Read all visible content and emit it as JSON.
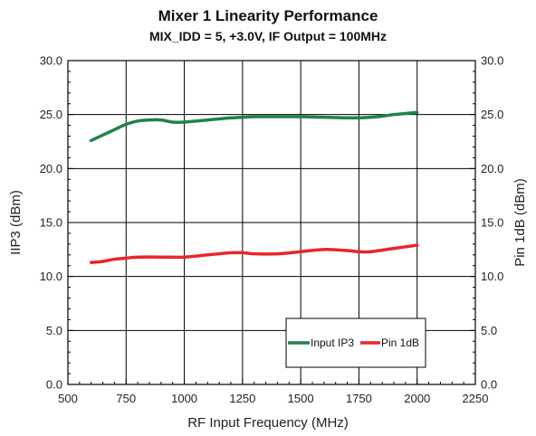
{
  "chart_data": {
    "type": "line",
    "title": "Mixer 1 Linearity Performance",
    "subtitle": "MIX_IDD = 5, +3.0V, IF Output = 100MHz",
    "xlabel": "RF Input Frequency (MHz)",
    "ylabel_left": "IIP3 (dBm)",
    "ylabel_right": "Pin 1dB (dBm)",
    "xlim": [
      500,
      2250
    ],
    "ylim": [
      0,
      30
    ],
    "x_ticks": [
      "500",
      "750",
      "1000",
      "1250",
      "1500",
      "1750",
      "2000",
      "2250"
    ],
    "y_ticks": [
      "0.0",
      "5.0",
      "10.0",
      "15.0",
      "20.0",
      "25.0",
      "30.0"
    ],
    "grid": true,
    "legend_position": "bottom-right",
    "series": [
      {
        "name": "Input IP3",
        "color": "#1e8449",
        "x": [
          600,
          650,
          700,
          750,
          800,
          850,
          900,
          950,
          1000,
          1050,
          1100,
          1150,
          1200,
          1250,
          1300,
          1400,
          1500,
          1600,
          1700,
          1750,
          1800,
          1850,
          1900,
          1950,
          2000
        ],
        "y": [
          22.6,
          23.1,
          23.6,
          24.1,
          24.4,
          24.5,
          24.5,
          24.3,
          24.3,
          24.4,
          24.5,
          24.6,
          24.7,
          24.75,
          24.8,
          24.8,
          24.8,
          24.75,
          24.7,
          24.7,
          24.75,
          24.85,
          25.0,
          25.1,
          25.2
        ]
      },
      {
        "name": "Pin 1dB",
        "color": "#e8262b",
        "x": [
          600,
          650,
          700,
          750,
          800,
          900,
          1000,
          1100,
          1200,
          1250,
          1300,
          1400,
          1500,
          1600,
          1700,
          1750,
          1800,
          1900,
          2000
        ],
        "y": [
          11.3,
          11.4,
          11.6,
          11.7,
          11.8,
          11.8,
          11.8,
          12.0,
          12.2,
          12.2,
          12.1,
          12.1,
          12.3,
          12.5,
          12.4,
          12.3,
          12.3,
          12.6,
          12.9
        ]
      }
    ]
  }
}
